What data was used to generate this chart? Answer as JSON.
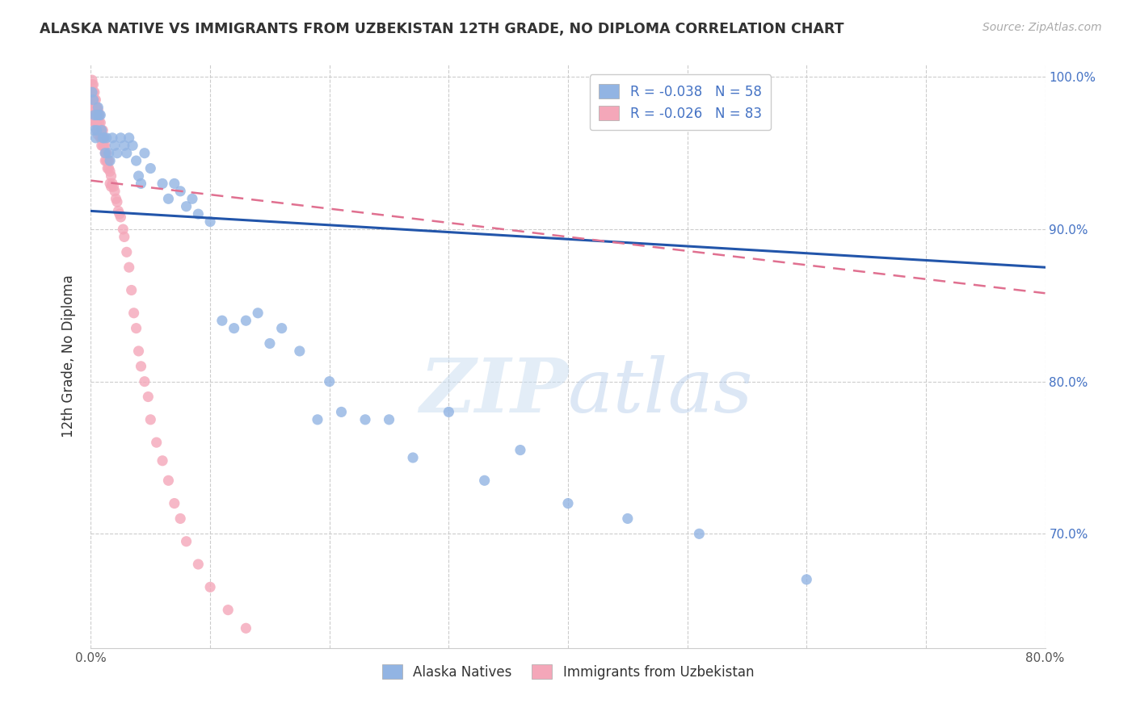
{
  "title": "ALASKA NATIVE VS IMMIGRANTS FROM UZBEKISTAN 12TH GRADE, NO DIPLOMA CORRELATION CHART",
  "source": "Source: ZipAtlas.com",
  "ylabel": "12th Grade, No Diploma",
  "xlim": [
    0.0,
    0.8
  ],
  "ylim": [
    0.625,
    1.008
  ],
  "x_tick_positions": [
    0.0,
    0.1,
    0.2,
    0.3,
    0.4,
    0.5,
    0.6,
    0.7,
    0.8
  ],
  "x_tick_labels": [
    "0.0%",
    "",
    "",
    "",
    "",
    "",
    "",
    "",
    "80.0%"
  ],
  "y_tick_positions": [
    0.7,
    0.8,
    0.9,
    1.0
  ],
  "y_tick_labels": [
    "70.0%",
    "80.0%",
    "90.0%",
    "100.0%"
  ],
  "legend_blue_label": "R = -0.038   N = 58",
  "legend_pink_label": "R = -0.026   N = 83",
  "legend_bottom_blue": "Alaska Natives",
  "legend_bottom_pink": "Immigrants from Uzbekistan",
  "blue_color": "#92b4e3",
  "pink_color": "#f4a7b9",
  "blue_line_color": "#2255aa",
  "pink_line_color": "#e07090",
  "watermark_zip": "ZIP",
  "watermark_atlas": "atlas",
  "blue_R": -0.038,
  "blue_N": 58,
  "pink_R": -0.026,
  "pink_N": 83,
  "blue_line_x": [
    0.0,
    0.8
  ],
  "blue_line_y": [
    0.912,
    0.875
  ],
  "pink_line_x": [
    0.0,
    0.8
  ],
  "pink_line_y": [
    0.932,
    0.858
  ],
  "blue_scatter_x": [
    0.001,
    0.002,
    0.003,
    0.003,
    0.004,
    0.005,
    0.005,
    0.006,
    0.007,
    0.008,
    0.009,
    0.01,
    0.011,
    0.012,
    0.013,
    0.015,
    0.016,
    0.018,
    0.02,
    0.022,
    0.025,
    0.028,
    0.03,
    0.032,
    0.035,
    0.038,
    0.04,
    0.042,
    0.045,
    0.05,
    0.06,
    0.065,
    0.07,
    0.075,
    0.08,
    0.085,
    0.09,
    0.1,
    0.11,
    0.12,
    0.13,
    0.14,
    0.15,
    0.16,
    0.175,
    0.19,
    0.2,
    0.21,
    0.23,
    0.25,
    0.27,
    0.3,
    0.33,
    0.36,
    0.4,
    0.45,
    0.51,
    0.6
  ],
  "blue_scatter_y": [
    0.99,
    0.985,
    0.975,
    0.965,
    0.96,
    0.975,
    0.965,
    0.98,
    0.975,
    0.975,
    0.965,
    0.96,
    0.96,
    0.95,
    0.96,
    0.95,
    0.945,
    0.96,
    0.955,
    0.95,
    0.96,
    0.955,
    0.95,
    0.96,
    0.955,
    0.945,
    0.935,
    0.93,
    0.95,
    0.94,
    0.93,
    0.92,
    0.93,
    0.925,
    0.915,
    0.92,
    0.91,
    0.905,
    0.84,
    0.835,
    0.84,
    0.845,
    0.825,
    0.835,
    0.82,
    0.775,
    0.8,
    0.78,
    0.775,
    0.775,
    0.75,
    0.78,
    0.735,
    0.755,
    0.72,
    0.71,
    0.7,
    0.67
  ],
  "pink_scatter_x": [
    0.001,
    0.001,
    0.001,
    0.001,
    0.002,
    0.002,
    0.002,
    0.002,
    0.002,
    0.003,
    0.003,
    0.003,
    0.003,
    0.003,
    0.004,
    0.004,
    0.004,
    0.004,
    0.005,
    0.005,
    0.005,
    0.005,
    0.006,
    0.006,
    0.006,
    0.006,
    0.007,
    0.007,
    0.007,
    0.008,
    0.008,
    0.008,
    0.009,
    0.009,
    0.009,
    0.01,
    0.01,
    0.01,
    0.011,
    0.011,
    0.012,
    0.012,
    0.012,
    0.013,
    0.013,
    0.014,
    0.014,
    0.015,
    0.015,
    0.016,
    0.016,
    0.017,
    0.017,
    0.018,
    0.019,
    0.02,
    0.021,
    0.022,
    0.023,
    0.024,
    0.025,
    0.027,
    0.028,
    0.03,
    0.032,
    0.034,
    0.036,
    0.038,
    0.04,
    0.042,
    0.045,
    0.048,
    0.05,
    0.055,
    0.06,
    0.065,
    0.07,
    0.075,
    0.08,
    0.09,
    0.1,
    0.115,
    0.13
  ],
  "pink_scatter_y": [
    0.998,
    0.995,
    0.99,
    0.985,
    0.995,
    0.99,
    0.985,
    0.98,
    0.975,
    0.99,
    0.985,
    0.98,
    0.975,
    0.97,
    0.985,
    0.98,
    0.975,
    0.97,
    0.98,
    0.975,
    0.97,
    0.965,
    0.978,
    0.972,
    0.967,
    0.962,
    0.975,
    0.97,
    0.965,
    0.97,
    0.965,
    0.96,
    0.965,
    0.96,
    0.955,
    0.965,
    0.96,
    0.955,
    0.96,
    0.955,
    0.955,
    0.95,
    0.945,
    0.95,
    0.945,
    0.945,
    0.94,
    0.945,
    0.94,
    0.938,
    0.93,
    0.935,
    0.928,
    0.93,
    0.928,
    0.925,
    0.92,
    0.918,
    0.912,
    0.91,
    0.908,
    0.9,
    0.895,
    0.885,
    0.875,
    0.86,
    0.845,
    0.835,
    0.82,
    0.81,
    0.8,
    0.79,
    0.775,
    0.76,
    0.748,
    0.735,
    0.72,
    0.71,
    0.695,
    0.68,
    0.665,
    0.65,
    0.638
  ]
}
